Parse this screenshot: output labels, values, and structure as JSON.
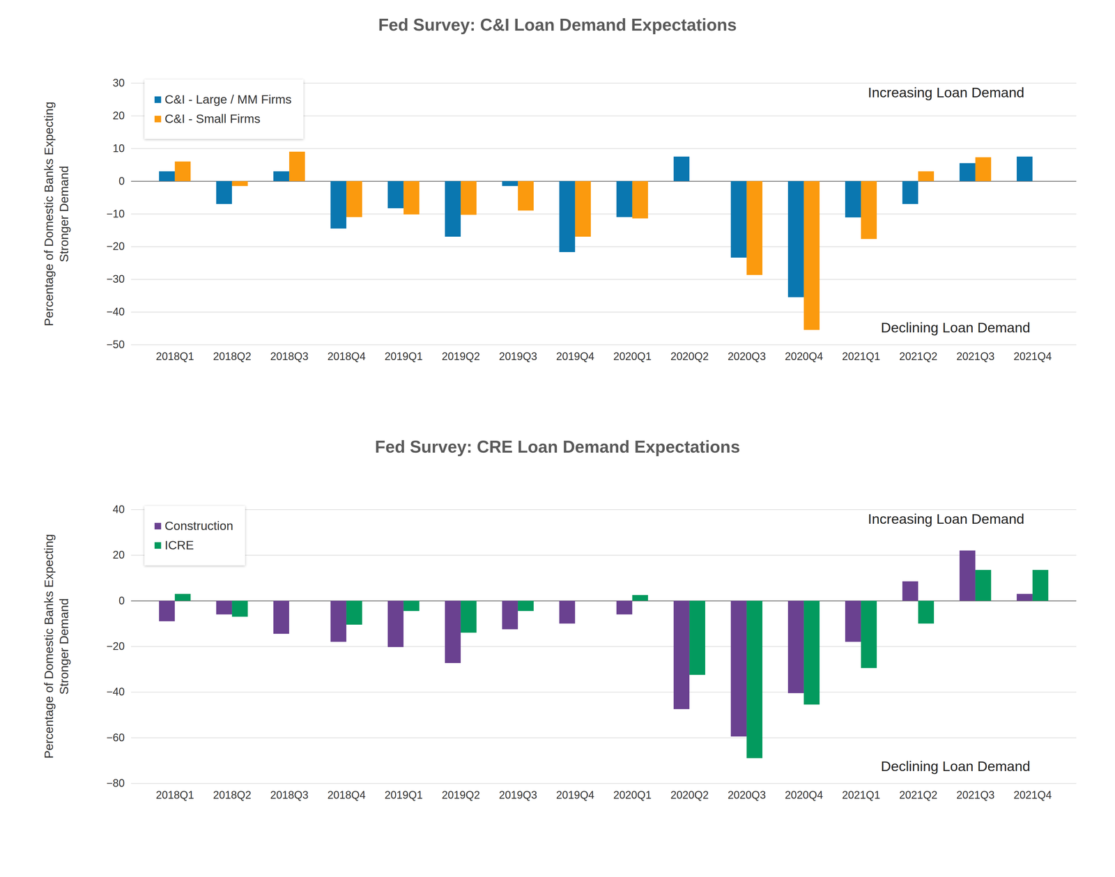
{
  "chart_data": [
    {
      "type": "bar",
      "title": "Fed Survey:  C&I Loan Demand Expectations",
      "y_label": "Percentage of Domestic Banks Expecting Stronger Demand",
      "categories": [
        "2018Q1",
        "2018Q2",
        "2018Q3",
        "2018Q4",
        "2019Q1",
        "2019Q2",
        "2019Q3",
        "2019Q4",
        "2020Q1",
        "2020Q2",
        "2020Q3",
        "2020Q4",
        "2021Q1",
        "2021Q2",
        "2021Q3",
        "2021Q4"
      ],
      "series": [
        {
          "name": "C&I - Large / MM Firms",
          "color": "#0a77b0",
          "values": [
            3,
            -7,
            3,
            -14.5,
            -8.3,
            -17,
            -1.5,
            -21.7,
            -11,
            7.5,
            -23.4,
            -35.5,
            -11.1,
            -7,
            5.5,
            7.5
          ]
        },
        {
          "name": "C&I - Small Firms",
          "color": "#fb9a0e",
          "values": [
            6,
            -1.5,
            9,
            -11,
            -10.2,
            -10.3,
            -9,
            -17,
            -11.4,
            0,
            -28.7,
            -45.5,
            -17.7,
            3,
            7.3,
            0
          ]
        }
      ],
      "ylim": [
        -50,
        30
      ],
      "yticks": [
        -50,
        -40,
        -30,
        -20,
        -10,
        0,
        10,
        20,
        30
      ],
      "grid": true,
      "legend": "top-left",
      "annotations": [
        "Increasing Loan Demand",
        "Declining Loan Demand"
      ]
    },
    {
      "type": "bar",
      "title": "Fed Survey:  CRE Loan Demand Expectations",
      "y_label": "Percentage of Domestic Banks Expecting Stronger Demand",
      "categories": [
        "2018Q1",
        "2018Q2",
        "2018Q3",
        "2018Q4",
        "2019Q1",
        "2019Q2",
        "2019Q3",
        "2019Q4",
        "2020Q1",
        "2020Q2",
        "2020Q3",
        "2020Q4",
        "2021Q1",
        "2021Q2",
        "2021Q3",
        "2021Q4"
      ],
      "series": [
        {
          "name": "Construction",
          "color": "#6a4190",
          "values": [
            -9,
            -6,
            -14.5,
            -18,
            -20.3,
            -27.3,
            -12.5,
            -10,
            -6,
            -47.5,
            -59.5,
            -40.5,
            -18,
            8.5,
            22,
            3
          ]
        },
        {
          "name": "ICRE",
          "color": "#039a5e",
          "values": [
            3,
            -7,
            0,
            -10.5,
            -4.5,
            -14,
            -4.5,
            0,
            2.5,
            -32.5,
            -69,
            -45.5,
            -29.5,
            -10,
            13.5,
            13.5
          ]
        }
      ],
      "ylim": [
        -80,
        40
      ],
      "yticks": [
        -80,
        -60,
        -40,
        -20,
        0,
        20,
        40
      ],
      "grid": true,
      "legend": "top-left",
      "annotations": [
        "Increasing Loan Demand",
        "Declining Loan Demand"
      ]
    }
  ]
}
